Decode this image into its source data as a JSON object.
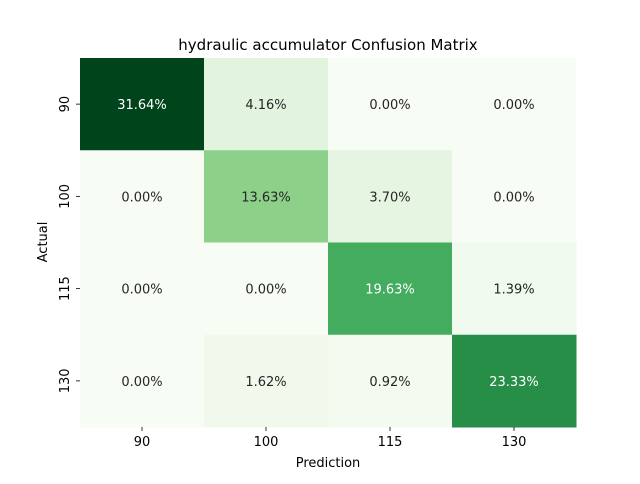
{
  "chart_data": {
    "type": "heatmap",
    "title": "hydraulic accumulator Confusion Matrix",
    "xlabel": "Prediction",
    "ylabel": "Actual",
    "x_categories": [
      "90",
      "100",
      "115",
      "130"
    ],
    "y_categories": [
      "90",
      "100",
      "115",
      "130"
    ],
    "values": [
      [
        31.64,
        4.16,
        0.0,
        0.0
      ],
      [
        0.0,
        13.63,
        3.7,
        0.0
      ],
      [
        0.0,
        0.0,
        19.63,
        1.39
      ],
      [
        0.0,
        1.62,
        0.92,
        23.33
      ]
    ],
    "value_labels": [
      [
        "31.64%",
        "4.16%",
        "0.00%",
        "0.00%"
      ],
      [
        "0.00%",
        "13.63%",
        "3.70%",
        "0.00%"
      ],
      [
        "0.00%",
        "0.00%",
        "19.63%",
        "1.39%"
      ],
      [
        "0.00%",
        "1.62%",
        "0.92%",
        "23.33%"
      ]
    ],
    "colormap": "Greens",
    "colorbar": false,
    "grid": false
  }
}
